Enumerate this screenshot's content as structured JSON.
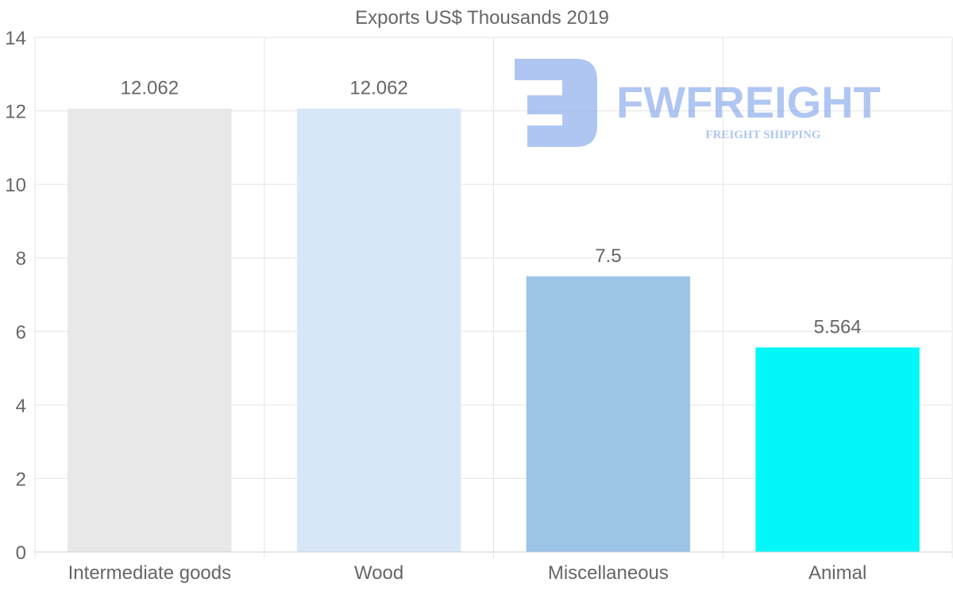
{
  "chart_data": {
    "type": "bar",
    "title": "Exports US$ Thousands 2019",
    "categories": [
      "Intermediate goods",
      "Wood",
      "Miscellaneous",
      "Animal"
    ],
    "values": [
      12.062,
      12.062,
      7.5,
      5.564
    ],
    "value_labels": [
      "12.062",
      "12.062",
      "7.5",
      "5.564"
    ],
    "colors": [
      "#e8e8e8",
      "#d7e7f8",
      "#9cc4e6",
      "#02f8f8"
    ],
    "ylim": [
      0,
      14
    ],
    "yticks": [
      0,
      2,
      4,
      6,
      8,
      10,
      12,
      14
    ],
    "xlabel": "",
    "ylabel": "",
    "grid": true,
    "legend": "none"
  },
  "watermark": {
    "brand": "FWFREIGHT",
    "tagline": "FREIGHT SHIPPING",
    "color": "#6f98e8"
  },
  "style": {
    "text_color": "#666666",
    "grid_color": "#e5e5e5"
  }
}
